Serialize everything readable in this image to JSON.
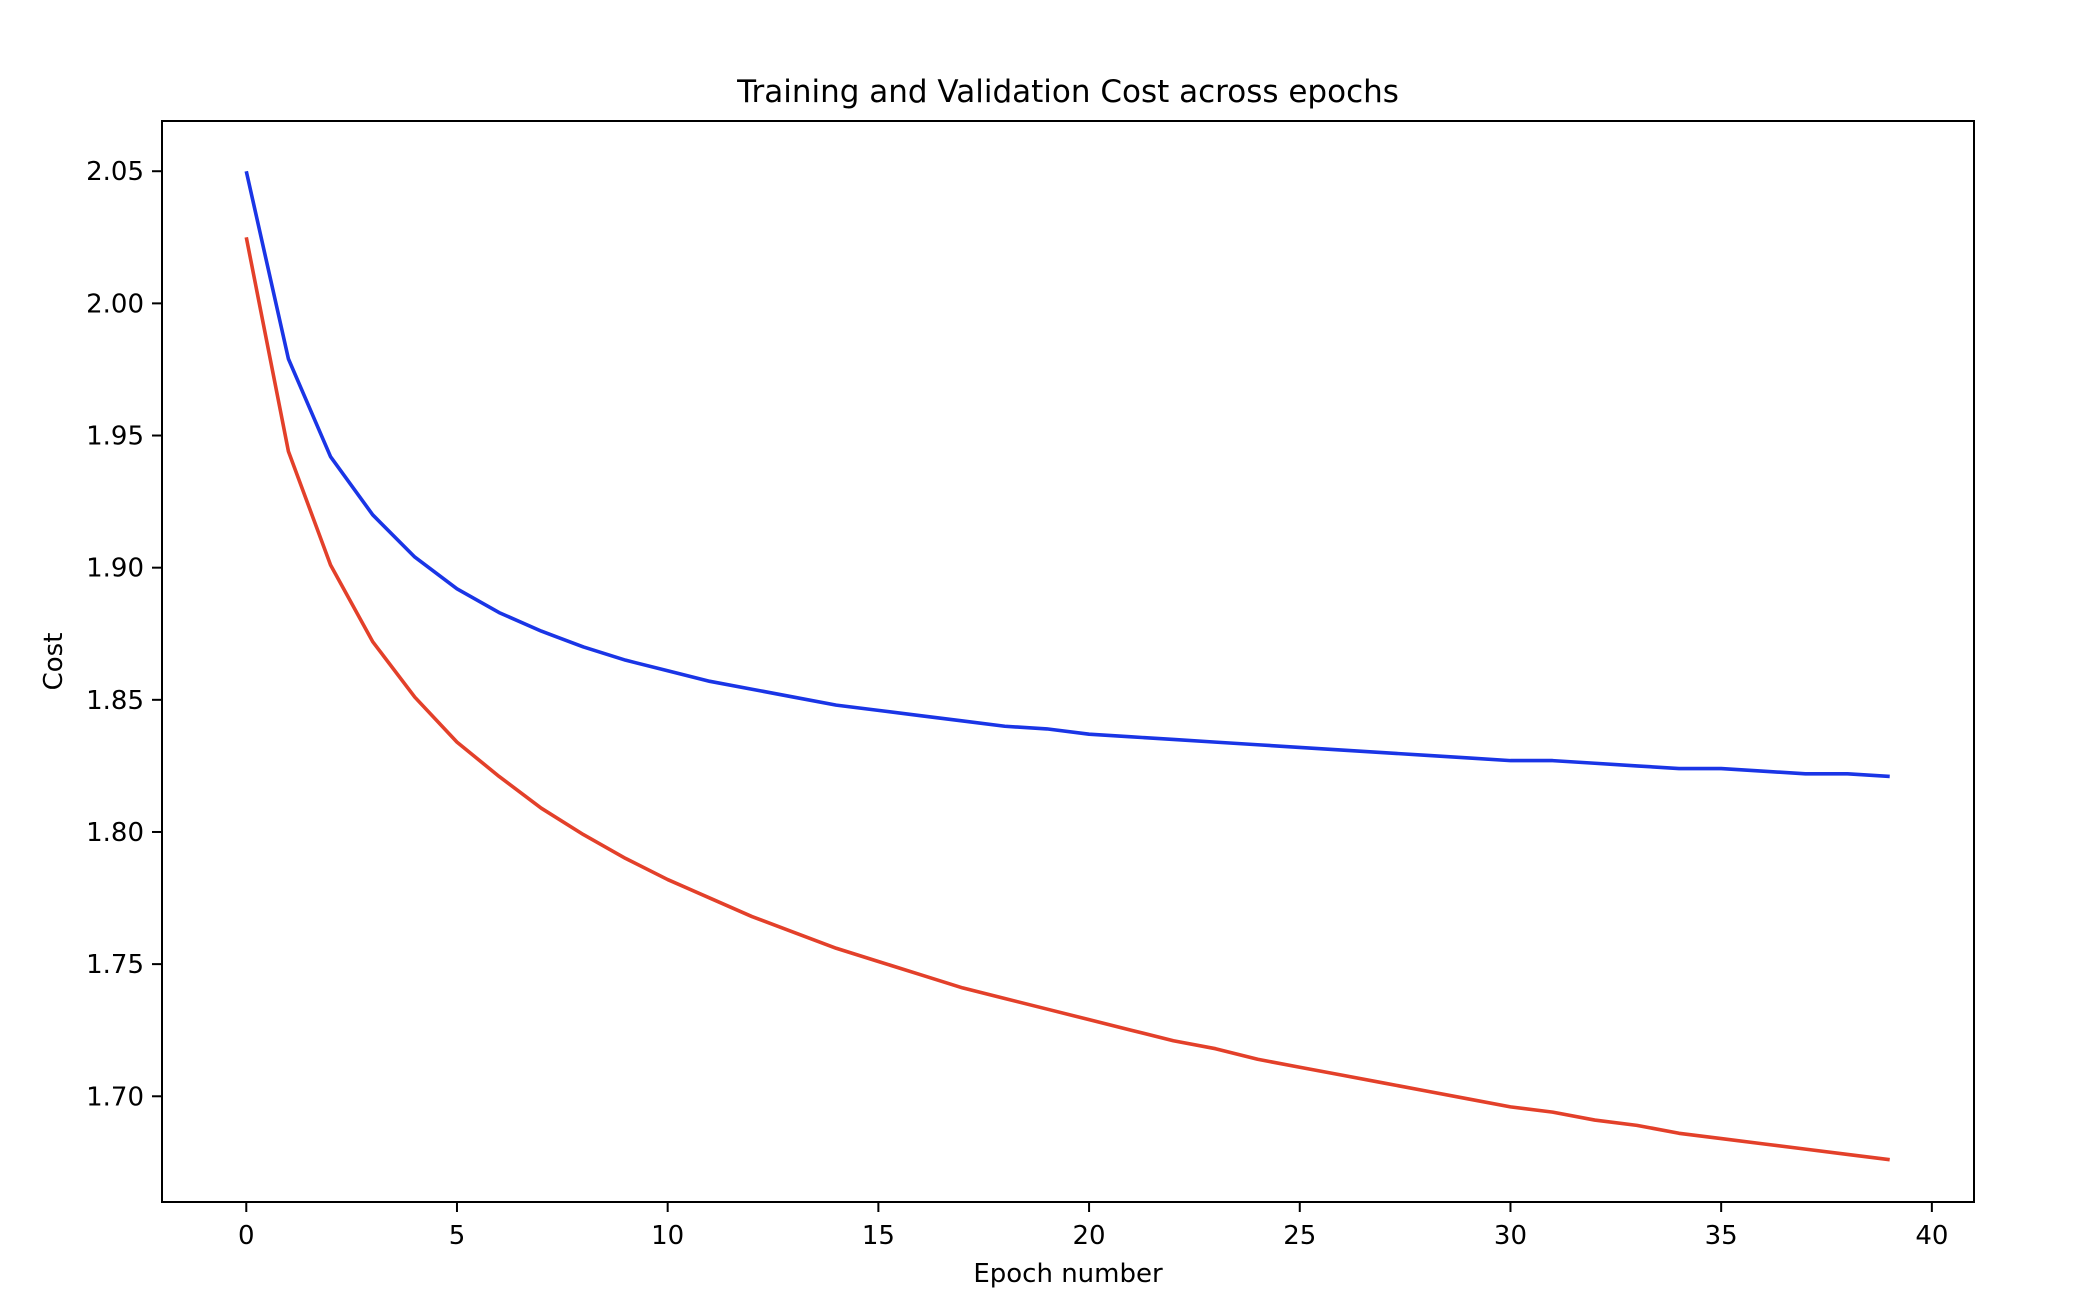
{
  "chart_data": {
    "type": "line",
    "title": "Training and Validation Cost across epochs",
    "xlabel": "Epoch number",
    "ylabel": "Cost",
    "xlim": [
      -2,
      41
    ],
    "ylim": [
      1.66,
      2.069
    ],
    "x_ticks": [
      0,
      5,
      10,
      15,
      20,
      25,
      30,
      35,
      40
    ],
    "y_ticks": [
      1.7,
      1.75,
      1.8,
      1.85,
      1.9,
      1.95,
      2.0,
      2.05
    ],
    "grid": false,
    "legend": "none",
    "x": [
      0,
      1,
      2,
      3,
      4,
      5,
      6,
      7,
      8,
      9,
      10,
      11,
      12,
      13,
      14,
      15,
      16,
      17,
      18,
      19,
      20,
      21,
      22,
      23,
      24,
      25,
      26,
      27,
      28,
      29,
      30,
      31,
      32,
      33,
      34,
      35,
      36,
      37,
      38,
      39
    ],
    "series": [
      {
        "color": "#1a35e6",
        "values": [
          2.05,
          1.979,
          1.942,
          1.92,
          1.904,
          1.892,
          1.883,
          1.876,
          1.87,
          1.865,
          1.861,
          1.857,
          1.854,
          1.851,
          1.848,
          1.846,
          1.844,
          1.842,
          1.84,
          1.839,
          1.837,
          1.836,
          1.835,
          1.834,
          1.833,
          1.832,
          1.831,
          1.83,
          1.829,
          1.828,
          1.827,
          1.827,
          1.826,
          1.825,
          1.824,
          1.824,
          1.823,
          1.822,
          1.822,
          1.821
        ]
      },
      {
        "color": "#e3402a",
        "values": [
          2.025,
          1.944,
          1.901,
          1.872,
          1.851,
          1.834,
          1.821,
          1.809,
          1.799,
          1.79,
          1.782,
          1.775,
          1.768,
          1.762,
          1.756,
          1.751,
          1.746,
          1.741,
          1.737,
          1.733,
          1.729,
          1.725,
          1.721,
          1.718,
          1.714,
          1.711,
          1.708,
          1.705,
          1.702,
          1.699,
          1.696,
          1.694,
          1.691,
          1.689,
          1.686,
          1.684,
          1.682,
          1.68,
          1.678,
          1.676
        ]
      }
    ]
  }
}
